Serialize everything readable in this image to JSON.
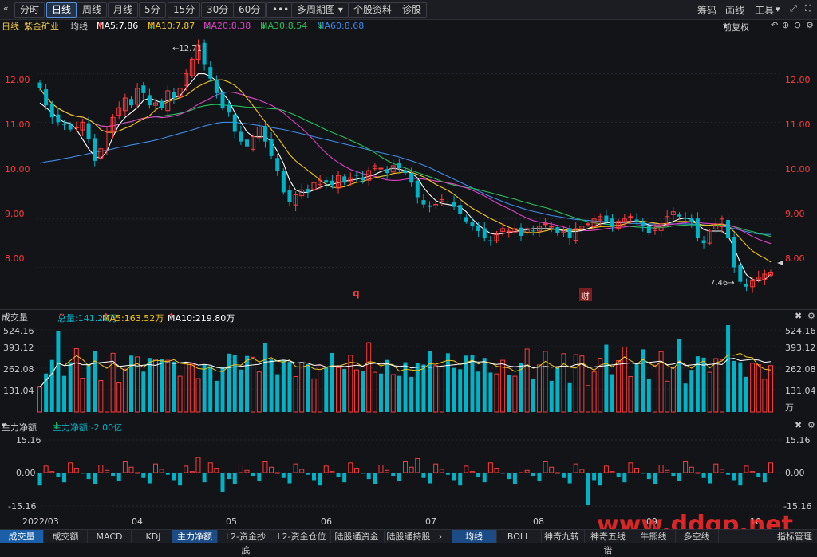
{
  "toolbar": {
    "back_icon": "chevron-left-icon",
    "buttons": [
      "分时",
      "日线",
      "周线",
      "月线",
      "5分",
      "15分",
      "30分",
      "60分",
      "•••",
      "多周期图",
      "个股资料",
      "诊股"
    ],
    "active": "日线",
    "right": [
      "筹码",
      "画线",
      "工具"
    ]
  },
  "ma_header": {
    "period": "日线",
    "name": "紫金矿业",
    "avg_label": "均线",
    "ma5": "MA5:7.86",
    "ma10": "MA10:7.87",
    "ma20": "MA20:8.38",
    "ma30": "MA30:8.54",
    "ma60": "MA60:8.68",
    "adjust": "前复权"
  },
  "volume_header": {
    "title": "成交量",
    "total": "总量:141.28万",
    "ma5": "MA5:163.52万",
    "ma10": "MA10:219.80万"
  },
  "flow_header": {
    "title": "主力净额",
    "value": "主力净额:-2.00亿"
  },
  "price_axis": [
    "12.00",
    "11.00",
    "10.00",
    "9.00",
    "8.00"
  ],
  "volume_axis": [
    "524.16",
    "393.12",
    "262.08",
    "131.04",
    "万"
  ],
  "flow_axis": [
    "15.16",
    "0.00",
    "-15.16"
  ],
  "date_axis": [
    "2022/03",
    "04",
    "05",
    "06",
    "07",
    "08",
    "09",
    "10"
  ],
  "annotations": {
    "high": "12.71",
    "low": "7.46",
    "q_marker": "q",
    "cai_marker": "财"
  },
  "bottom_tabs_left": [
    "成交量",
    "成交额",
    "MACD",
    "KDJ",
    "主力净额",
    "L2-资金抄底",
    "L2-资金仓位",
    "陆股通资金",
    "陆股通持股"
  ],
  "bottom_tabs_right": [
    "均线",
    "BOLL",
    "神奇九转",
    "神奇五线谱",
    "牛熊线",
    "多空线",
    "指标管理"
  ],
  "watermark": "www.ddgp.net",
  "colors": {
    "up": "#ff3b3b",
    "down": "#00b4c8",
    "ma5": "#ffffff",
    "ma10": "#f5c518",
    "ma20": "#e040c8",
    "ma30": "#27c05a",
    "ma60": "#3a8be8"
  },
  "chart_data": {
    "type": "candlestick",
    "ylim": [
      7.3,
      12.9
    ],
    "closes": [
      11.7,
      11.35,
      11.1,
      11.0,
      10.95,
      10.85,
      10.9,
      11.0,
      10.65,
      10.2,
      10.45,
      10.8,
      11.1,
      11.3,
      11.5,
      11.35,
      11.7,
      11.6,
      11.35,
      11.4,
      11.3,
      11.65,
      11.5,
      11.7,
      12.0,
      12.3,
      12.6,
      12.2,
      11.9,
      11.6,
      11.3,
      11.2,
      10.8,
      10.6,
      10.5,
      10.7,
      10.9,
      10.6,
      10.3,
      10.0,
      9.55,
      9.35,
      9.5,
      9.6,
      9.55,
      9.75,
      9.8,
      9.75,
      9.7,
      9.9,
      9.75,
      9.85,
      9.9,
      9.8,
      10.0,
      10.1,
      10.05,
      9.95,
      10.1,
      10.05,
      9.95,
      9.75,
      9.45,
      9.3,
      9.25,
      9.3,
      9.4,
      9.35,
      9.25,
      9.1,
      8.95,
      8.85,
      8.75,
      8.6,
      8.55,
      8.7,
      8.8,
      8.75,
      8.8,
      8.65,
      8.8,
      8.75,
      8.85,
      8.9,
      8.85,
      8.7,
      8.75,
      8.6,
      8.8,
      8.85,
      8.9,
      9.0,
      9.05,
      8.95,
      8.85,
      8.95,
      9.0,
      9.05,
      8.95,
      8.85,
      8.7,
      8.8,
      8.9,
      9.05,
      9.15,
      9.05,
      9.0,
      8.95,
      8.6,
      8.5,
      8.75,
      8.9,
      9.0,
      8.6,
      8.0,
      7.7,
      7.6,
      7.72,
      7.8,
      7.86,
      7.9
    ],
    "ma5": [
      11.4,
      11.3,
      11.2,
      11.08,
      11.0,
      10.98,
      10.85,
      10.65,
      10.45,
      10.3,
      10.25,
      10.4,
      10.7,
      10.95,
      11.1,
      11.2,
      11.3,
      11.45,
      11.5,
      11.45,
      11.4,
      11.45,
      11.5,
      11.55,
      11.7,
      11.85,
      12.0,
      12.0,
      11.95,
      11.85,
      11.6,
      11.45,
      11.2,
      11.0,
      10.8,
      10.7,
      10.7,
      10.7,
      10.6,
      10.4,
      10.15,
      9.8,
      9.6,
      9.55,
      9.55,
      9.6,
      9.65,
      9.7,
      9.72,
      9.75,
      9.78,
      9.8,
      9.82,
      9.85,
      9.88,
      9.92,
      9.98,
      10.02,
      10.05,
      10.03,
      10.0,
      9.95,
      9.85,
      9.65,
      9.5,
      9.38,
      9.32,
      9.3,
      9.28,
      9.25,
      9.15,
      9.0,
      8.88,
      8.78,
      8.7,
      8.68,
      8.7,
      8.72,
      8.74,
      8.76,
      8.78,
      8.8,
      8.8,
      8.8,
      8.8,
      8.78,
      8.76,
      8.74,
      8.74,
      8.76,
      8.8,
      8.85,
      8.9,
      8.92,
      8.93,
      8.93,
      8.94,
      8.95,
      8.95,
      8.92,
      8.88,
      8.85,
      8.85,
      8.9,
      8.95,
      9.0,
      9.02,
      9.0,
      8.9,
      8.78,
      8.75,
      8.75,
      8.75,
      8.65,
      8.4,
      8.1,
      7.85,
      7.75,
      7.72,
      7.75,
      7.86
    ],
    "ma60": [
      10.15,
      10.18,
      10.2,
      10.22,
      10.25,
      10.27,
      10.3,
      10.32,
      10.35,
      10.38,
      10.4,
      10.42,
      10.45,
      10.48,
      10.5,
      10.53,
      10.55,
      10.58,
      10.6,
      10.63,
      10.66,
      10.7,
      10.73,
      10.77,
      10.8,
      10.84,
      10.88,
      10.92,
      10.95,
      10.98,
      11.0,
      11.0,
      11.0,
      10.98,
      10.97,
      10.95,
      10.93,
      10.91,
      10.89,
      10.87,
      10.85,
      10.82,
      10.79,
      10.76,
      10.73,
      10.7,
      10.67,
      10.64,
      10.61,
      10.58,
      10.55,
      10.52,
      10.49,
      10.46,
      10.43,
      10.4,
      10.37,
      10.34,
      10.31,
      10.28,
      10.24,
      10.2,
      10.16,
      10.11,
      10.06,
      10.0,
      9.94,
      9.88,
      9.82,
      9.76,
      9.7,
      9.64,
      9.58,
      9.52,
      9.46,
      9.41,
      9.36,
      9.31,
      9.27,
      9.23,
      9.19,
      9.16,
      9.13,
      9.1,
      9.07,
      9.05,
      9.03,
      9.01,
      8.99,
      8.98,
      8.97,
      8.96,
      8.95,
      8.94,
      8.93,
      8.92,
      8.92,
      8.91,
      8.91,
      8.9,
      8.9,
      8.9,
      8.9,
      8.9,
      8.9,
      8.9,
      8.9,
      8.9,
      8.89,
      8.88,
      8.87,
      8.86,
      8.85,
      8.83,
      8.8,
      8.77,
      8.74,
      8.71,
      8.69,
      8.68,
      8.68
    ]
  }
}
